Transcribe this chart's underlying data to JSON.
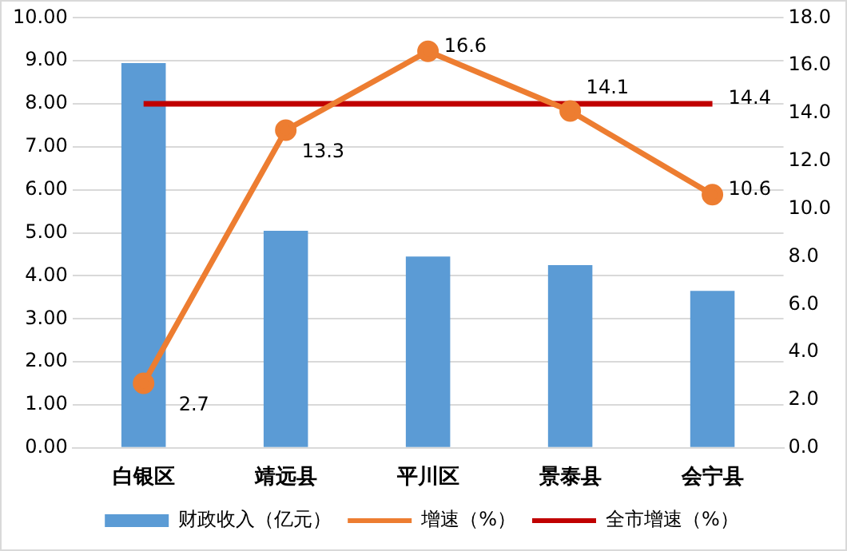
{
  "chart_data": {
    "type": "bar",
    "categories": [
      "白银区",
      "靖远县",
      "平川区",
      "景泰县",
      "会宁县"
    ],
    "series": [
      {
        "name": "财政收入（亿元）",
        "color": "#5b9bd5",
        "values": [
          8.95,
          5.05,
          4.45,
          4.25,
          3.65
        ]
      },
      {
        "name": "增速（%）",
        "type": "line",
        "axis": "y2",
        "color": "#ed7d31",
        "marker": "circle",
        "values": [
          2.7,
          13.3,
          16.6,
          14.1,
          10.6
        ],
        "value_labels": [
          "2.7",
          "13.3",
          "16.6",
          "14.1",
          "10.6"
        ]
      },
      {
        "name": "全市增速（%）",
        "type": "line",
        "axis": "y2",
        "color": "#c00000",
        "marker": "none",
        "values": [
          14.4,
          14.4,
          14.4,
          14.4,
          14.4
        ],
        "value_labels": [
          null,
          null,
          null,
          null,
          "14.4"
        ]
      }
    ],
    "ylim": [
      0,
      10
    ],
    "yticks": [
      {
        "value": 0,
        "label": "0.00"
      },
      {
        "value": 1,
        "label": "1.00"
      },
      {
        "value": 2,
        "label": "2.00"
      },
      {
        "value": 3,
        "label": "3.00"
      },
      {
        "value": 4,
        "label": "4.00"
      },
      {
        "value": 5,
        "label": "5.00"
      },
      {
        "value": 6,
        "label": "6.00"
      },
      {
        "value": 7,
        "label": "7.00"
      },
      {
        "value": 8,
        "label": "8.00"
      },
      {
        "value": 9,
        "label": "9.00"
      },
      {
        "value": 10,
        "label": "10.00"
      }
    ],
    "y2lim": [
      0,
      18
    ],
    "y2ticks": [
      {
        "value": 0,
        "label": "0.0"
      },
      {
        "value": 2,
        "label": "2.0"
      },
      {
        "value": 4,
        "label": "4.0"
      },
      {
        "value": 6,
        "label": "6.0"
      },
      {
        "value": 8,
        "label": "8.0"
      },
      {
        "value": 10,
        "label": "10.0"
      },
      {
        "value": 12,
        "label": "12.0"
      },
      {
        "value": 14,
        "label": "14.0"
      },
      {
        "value": 16,
        "label": "16.0"
      },
      {
        "value": 18,
        "label": "18.0"
      }
    ],
    "grid": "y",
    "legend": "bottom"
  }
}
